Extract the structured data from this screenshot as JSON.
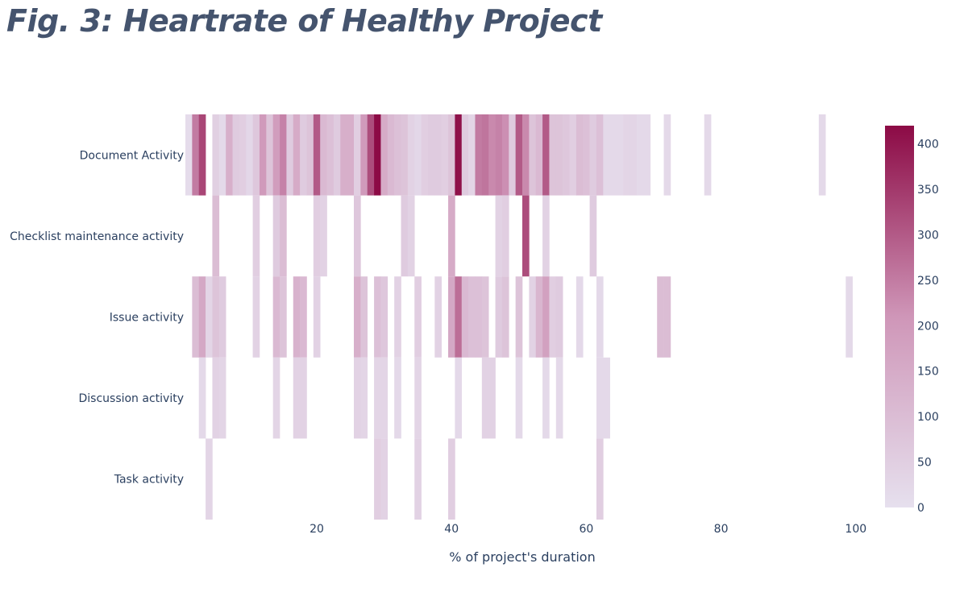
{
  "figure_title": "Fig. 3:  Heartrate of Healthy Project",
  "chart_data": {
    "type": "heatmap",
    "title": "Fig. 3:  Heartrate of Healthy Project",
    "xlabel": "% of project's duration",
    "ylabel": "",
    "x_ticks": [
      20,
      40,
      60,
      80,
      100
    ],
    "xlim": [
      0.5,
      100.5
    ],
    "categories": [
      "Document Activity",
      "Checklist maintenance activity",
      "Issue activity",
      "Discussion activity",
      "Task activity"
    ],
    "colorscale": {
      "min": 0,
      "max": 420,
      "ticks": [
        0,
        50,
        100,
        150,
        200,
        250,
        300,
        350,
        400
      ],
      "low_color": "#e6e0ee",
      "mid_color": "#cf96b8",
      "high_color": "#8c0a45"
    },
    "series": [
      {
        "values": [
          [
            1,
            10
          ],
          [
            2,
            250
          ],
          [
            3,
            330
          ],
          [
            5,
            45
          ],
          [
            6,
            20
          ],
          [
            7,
            140
          ],
          [
            8,
            60
          ],
          [
            9,
            50
          ],
          [
            10,
            25
          ],
          [
            11,
            70
          ],
          [
            12,
            200
          ],
          [
            13,
            80
          ],
          [
            14,
            190
          ],
          [
            15,
            240
          ],
          [
            16,
            60
          ],
          [
            17,
            150
          ],
          [
            18,
            60
          ],
          [
            19,
            80
          ],
          [
            20,
            300
          ],
          [
            21,
            110
          ],
          [
            22,
            90
          ],
          [
            23,
            60
          ],
          [
            24,
            140
          ],
          [
            25,
            140
          ],
          [
            26,
            50
          ],
          [
            27,
            200
          ],
          [
            28,
            320
          ],
          [
            29,
            420
          ],
          [
            30,
            150
          ],
          [
            31,
            110
          ],
          [
            32,
            90
          ],
          [
            33,
            80
          ],
          [
            34,
            40
          ],
          [
            35,
            25
          ],
          [
            36,
            50
          ],
          [
            37,
            60
          ],
          [
            38,
            60
          ],
          [
            39,
            50
          ],
          [
            40,
            80
          ],
          [
            41,
            410
          ],
          [
            42,
            60
          ],
          [
            43,
            30
          ],
          [
            44,
            250
          ],
          [
            45,
            260
          ],
          [
            46,
            230
          ],
          [
            47,
            240
          ],
          [
            48,
            220
          ],
          [
            49,
            60
          ],
          [
            50,
            300
          ],
          [
            51,
            230
          ],
          [
            52,
            80
          ],
          [
            53,
            110
          ],
          [
            54,
            300
          ],
          [
            55,
            80
          ],
          [
            56,
            80
          ],
          [
            57,
            70
          ],
          [
            58,
            50
          ],
          [
            59,
            100
          ],
          [
            60,
            90
          ],
          [
            61,
            60
          ],
          [
            62,
            90
          ],
          [
            63,
            20
          ],
          [
            64,
            20
          ],
          [
            65,
            20
          ],
          [
            66,
            30
          ],
          [
            67,
            30
          ],
          [
            68,
            20
          ],
          [
            69,
            20
          ],
          [
            72,
            20
          ],
          [
            78,
            20
          ],
          [
            95,
            20
          ]
        ]
      },
      {
        "values": [
          [
            5,
            100
          ],
          [
            11,
            50
          ],
          [
            14,
            60
          ],
          [
            15,
            100
          ],
          [
            20,
            50
          ],
          [
            21,
            40
          ],
          [
            26,
            70
          ],
          [
            33,
            60
          ],
          [
            34,
            40
          ],
          [
            40,
            150
          ],
          [
            47,
            40
          ],
          [
            48,
            50
          ],
          [
            51,
            320
          ],
          [
            54,
            40
          ],
          [
            61,
            60
          ]
        ]
      },
      {
        "values": [
          [
            2,
            100
          ],
          [
            3,
            160
          ],
          [
            4,
            30
          ],
          [
            5,
            80
          ],
          [
            6,
            60
          ],
          [
            11,
            40
          ],
          [
            14,
            110
          ],
          [
            15,
            80
          ],
          [
            17,
            130
          ],
          [
            18,
            110
          ],
          [
            20,
            40
          ],
          [
            26,
            140
          ],
          [
            27,
            80
          ],
          [
            29,
            90
          ],
          [
            30,
            70
          ],
          [
            32,
            40
          ],
          [
            35,
            50
          ],
          [
            38,
            40
          ],
          [
            40,
            160
          ],
          [
            41,
            270
          ],
          [
            42,
            110
          ],
          [
            43,
            90
          ],
          [
            44,
            90
          ],
          [
            45,
            80
          ],
          [
            47,
            60
          ],
          [
            48,
            80
          ],
          [
            50,
            80
          ],
          [
            52,
            40
          ],
          [
            53,
            120
          ],
          [
            54,
            180
          ],
          [
            55,
            50
          ],
          [
            56,
            60
          ],
          [
            59,
            20
          ],
          [
            62,
            20
          ],
          [
            71,
            100
          ],
          [
            72,
            100
          ],
          [
            99,
            20
          ]
        ]
      },
      {
        "values": [
          [
            3,
            20
          ],
          [
            5,
            40
          ],
          [
            6,
            30
          ],
          [
            14,
            30
          ],
          [
            17,
            40
          ],
          [
            18,
            40
          ],
          [
            26,
            40
          ],
          [
            27,
            30
          ],
          [
            29,
            30
          ],
          [
            30,
            30
          ],
          [
            32,
            20
          ],
          [
            35,
            30
          ],
          [
            41,
            20
          ],
          [
            45,
            40
          ],
          [
            46,
            40
          ],
          [
            50,
            20
          ],
          [
            54,
            20
          ],
          [
            56,
            20
          ],
          [
            62,
            20
          ],
          [
            63,
            20
          ]
        ]
      },
      {
        "values": [
          [
            4,
            30
          ],
          [
            29,
            50
          ],
          [
            30,
            40
          ],
          [
            35,
            40
          ],
          [
            40,
            50
          ],
          [
            62,
            50
          ]
        ]
      }
    ]
  }
}
